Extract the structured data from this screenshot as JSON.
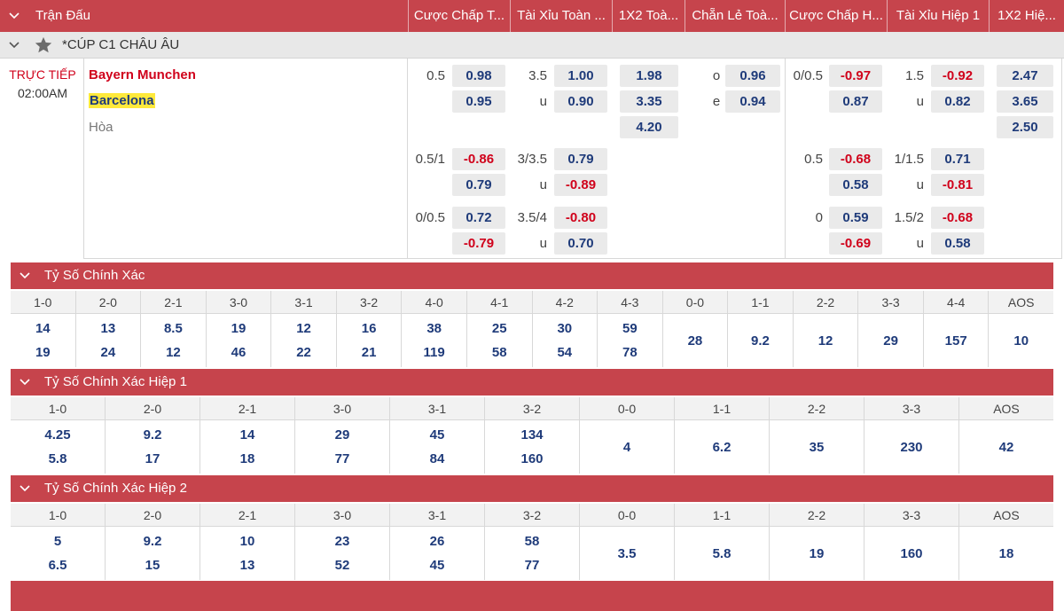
{
  "header": {
    "title": "Trận Đấu",
    "columns": [
      "Cược Chấp T...",
      "Tài Xỉu Toàn ...",
      "1X2 Toà...",
      "Chẵn Lẻ Toà...",
      "Cược Chấp H...",
      "Tài Xỉu Hiệp 1",
      "1X2 Hiệ..."
    ]
  },
  "league": {
    "name": "*CÚP C1 CHÂU ÂU"
  },
  "match": {
    "status": "TRỰC TIẾP",
    "time": "02:00AM",
    "home": "Bayern Munchen",
    "away": "Barcelona",
    "draw": "Hòa",
    "lines": [
      {
        "hdp_ft": {
          "line": "0.5",
          "home": "0.98",
          "away": "0.95"
        },
        "ou_ft": {
          "line": "3.5",
          "under_label": "u",
          "over": "1.00",
          "under": "0.90"
        },
        "x12_ft": {
          "home": "1.98",
          "away": "3.35",
          "draw": "4.20"
        },
        "oe_ft": {
          "odd_label": "o",
          "even_label": "e",
          "odd": "0.96",
          "even": "0.94"
        },
        "hdp_h1": {
          "line": "0/0.5",
          "home": "-0.97",
          "away": "0.87"
        },
        "ou_h1": {
          "line": "1.5",
          "under_label": "u",
          "over": "-0.92",
          "under": "0.82"
        },
        "x12_h1": {
          "home": "2.47",
          "away": "3.65",
          "draw": "2.50"
        }
      },
      {
        "hdp_ft": {
          "line": "0.5/1",
          "home": "-0.86",
          "away": "0.79"
        },
        "ou_ft": {
          "line": "3/3.5",
          "under_label": "u",
          "over": "0.79",
          "under": "-0.89"
        },
        "hdp_h1": {
          "line": "0.5",
          "home": "-0.68",
          "away": "0.58"
        },
        "ou_h1": {
          "line": "1/1.5",
          "under_label": "u",
          "over": "0.71",
          "under": "-0.81"
        }
      },
      {
        "hdp_ft": {
          "line": "0/0.5",
          "home": "0.72",
          "away": "-0.79"
        },
        "ou_ft": {
          "line": "3.5/4",
          "under_label": "u",
          "over": "-0.80",
          "under": "0.70"
        },
        "hdp_h1": {
          "line": "0",
          "home": "0.59",
          "away": "-0.69"
        },
        "ou_h1": {
          "line": "1.5/2",
          "under_label": "u",
          "over": "-0.68",
          "under": "0.58"
        }
      }
    ]
  },
  "sections": [
    {
      "title": "Tỷ Số Chính Xác",
      "cols": [
        {
          "h": "1-0",
          "v": [
            "14",
            "19"
          ]
        },
        {
          "h": "2-0",
          "v": [
            "13",
            "24"
          ]
        },
        {
          "h": "2-1",
          "v": [
            "8.5",
            "12"
          ]
        },
        {
          "h": "3-0",
          "v": [
            "19",
            "46"
          ]
        },
        {
          "h": "3-1",
          "v": [
            "12",
            "22"
          ]
        },
        {
          "h": "3-2",
          "v": [
            "16",
            "21"
          ]
        },
        {
          "h": "4-0",
          "v": [
            "38",
            "119"
          ]
        },
        {
          "h": "4-1",
          "v": [
            "25",
            "58"
          ]
        },
        {
          "h": "4-2",
          "v": [
            "30",
            "54"
          ]
        },
        {
          "h": "4-3",
          "v": [
            "59",
            "78"
          ]
        },
        {
          "h": "0-0",
          "v": [
            "28"
          ]
        },
        {
          "h": "1-1",
          "v": [
            "9.2"
          ]
        },
        {
          "h": "2-2",
          "v": [
            "12"
          ]
        },
        {
          "h": "3-3",
          "v": [
            "29"
          ]
        },
        {
          "h": "4-4",
          "v": [
            "157"
          ]
        },
        {
          "h": "AOS",
          "v": [
            "10"
          ]
        }
      ]
    },
    {
      "title": "Tỷ Số Chính Xác Hiệp 1",
      "cols": [
        {
          "h": "1-0",
          "v": [
            "4.25",
            "5.8"
          ]
        },
        {
          "h": "2-0",
          "v": [
            "9.2",
            "17"
          ]
        },
        {
          "h": "2-1",
          "v": [
            "14",
            "18"
          ]
        },
        {
          "h": "3-0",
          "v": [
            "29",
            "77"
          ]
        },
        {
          "h": "3-1",
          "v": [
            "45",
            "84"
          ]
        },
        {
          "h": "3-2",
          "v": [
            "134",
            "160"
          ]
        },
        {
          "h": "0-0",
          "v": [
            "4"
          ]
        },
        {
          "h": "1-1",
          "v": [
            "6.2"
          ]
        },
        {
          "h": "2-2",
          "v": [
            "35"
          ]
        },
        {
          "h": "3-3",
          "v": [
            "230"
          ]
        },
        {
          "h": "AOS",
          "v": [
            "42"
          ]
        }
      ]
    },
    {
      "title": "Tỷ Số Chính Xác Hiệp 2",
      "cols": [
        {
          "h": "1-0",
          "v": [
            "5",
            "6.5"
          ]
        },
        {
          "h": "2-0",
          "v": [
            "9.2",
            "15"
          ]
        },
        {
          "h": "2-1",
          "v": [
            "10",
            "13"
          ]
        },
        {
          "h": "3-0",
          "v": [
            "23",
            "52"
          ]
        },
        {
          "h": "3-1",
          "v": [
            "26",
            "45"
          ]
        },
        {
          "h": "3-2",
          "v": [
            "58",
            "77"
          ]
        },
        {
          "h": "0-0",
          "v": [
            "3.5"
          ]
        },
        {
          "h": "1-1",
          "v": [
            "5.8"
          ]
        },
        {
          "h": "2-2",
          "v": [
            "19"
          ]
        },
        {
          "h": "3-3",
          "v": [
            "160"
          ]
        },
        {
          "h": "AOS",
          "v": [
            "18"
          ]
        }
      ]
    }
  ],
  "icons": {
    "collapse": "chevron-down-icon",
    "favorite": "star-icon"
  },
  "colors": {
    "accent": "#c6444c",
    "odds_positive": "#1f3b7a",
    "odds_negative": "#d0021b",
    "highlight": "#ffe93b"
  }
}
